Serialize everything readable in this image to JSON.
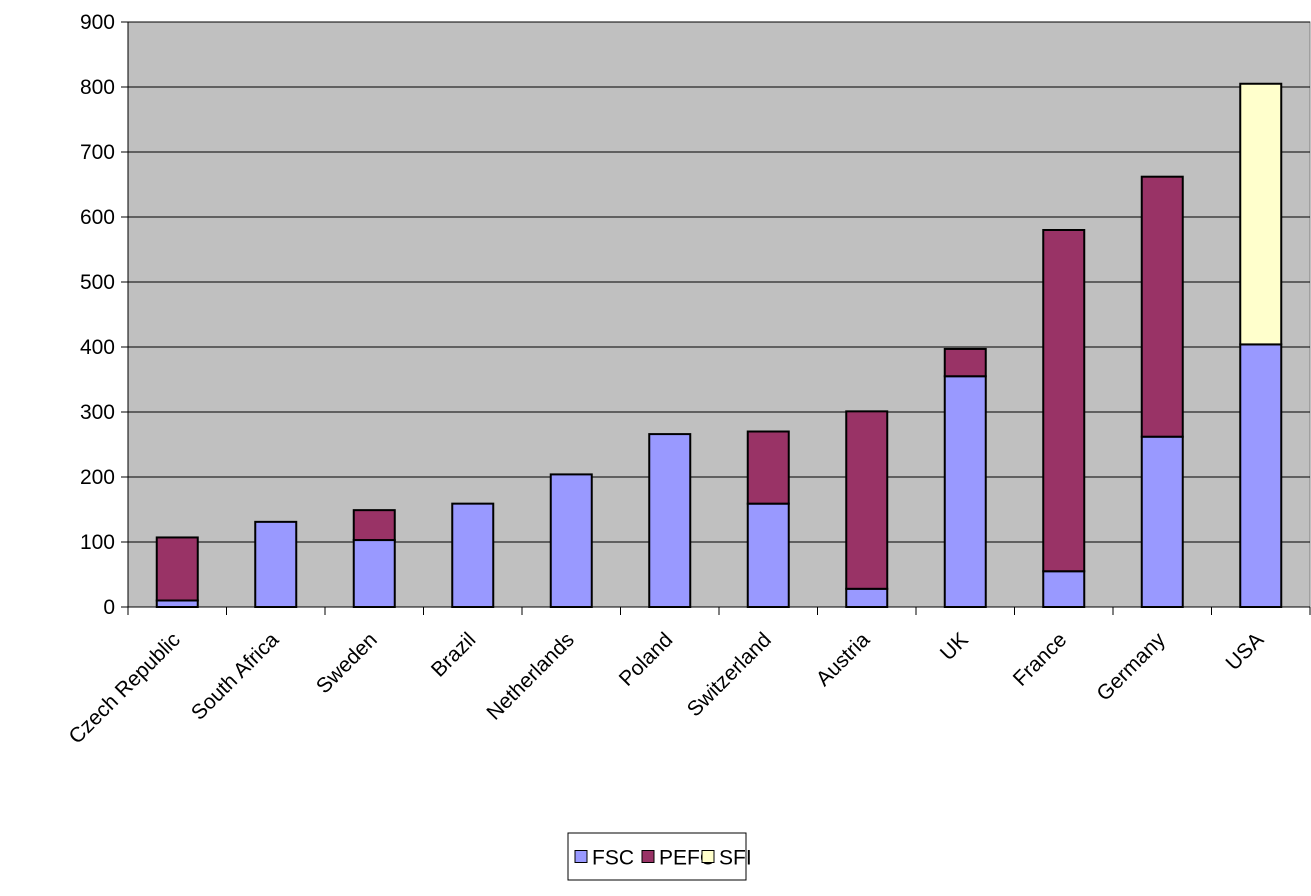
{
  "chart_data": {
    "type": "bar",
    "stacked": true,
    "title": "",
    "xlabel": "",
    "ylabel": "",
    "categories": [
      "Czech Republic",
      "South Africa",
      "Sweden",
      "Brazil",
      "Netherlands",
      "Poland",
      "Switzerland",
      "Austria",
      "UK",
      "France",
      "Germany",
      "USA"
    ],
    "series": [
      {
        "name": "FSC",
        "color": "#9999ff",
        "values": [
          10,
          131,
          103,
          159,
          204,
          266,
          159,
          28,
          355,
          55,
          262,
          404
        ]
      },
      {
        "name": "PEFC",
        "color": "#993366",
        "values": [
          97,
          0,
          46,
          0,
          0,
          0,
          111,
          273,
          42,
          525,
          400,
          0
        ]
      },
      {
        "name": "SFI",
        "color": "#ffffcc",
        "values": [
          0,
          0,
          0,
          0,
          0,
          0,
          0,
          0,
          0,
          0,
          0,
          401
        ]
      }
    ],
    "ylim": [
      0,
      900
    ],
    "yticks": [
      0,
      100,
      200,
      300,
      400,
      500,
      600,
      700,
      800,
      900
    ],
    "grid": true,
    "plot_background": "#c0c0c0",
    "legend_position": "bottom-center"
  }
}
